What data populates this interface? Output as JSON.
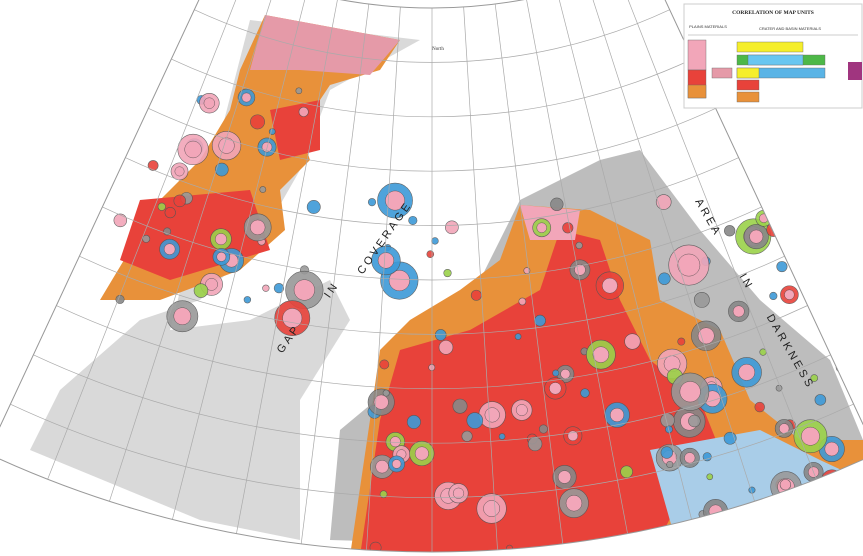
{
  "map": {
    "north_label": "North",
    "gap_words": [
      "GAP",
      "IN",
      "COVERAGE"
    ],
    "darkness_words": [
      "AREA",
      "IN",
      "DARKNESS"
    ]
  },
  "legend": {
    "title": "CORRELATION OF MAP UNITS",
    "plains_header": "PLAINS MATERIALS",
    "crater_header": "CRATER AND BASIN MATERIALS"
  }
}
